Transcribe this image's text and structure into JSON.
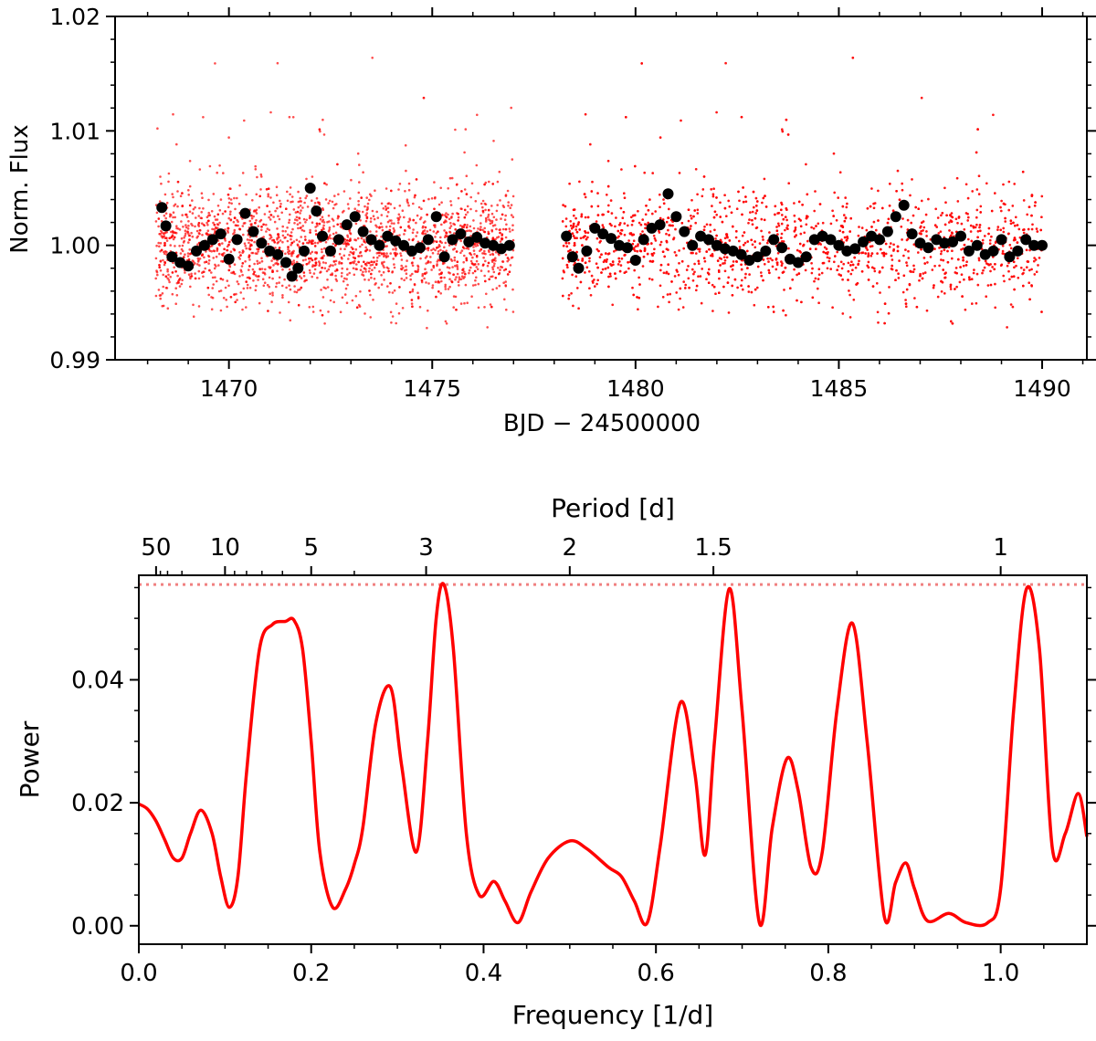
{
  "chart_data": [
    {
      "type": "scatter",
      "name": "light-curve",
      "xlabel": "BJD − 24500000",
      "ylabel": "Norm. Flux",
      "xlim": [
        1467.2,
        1491.1
      ],
      "ylim": [
        0.99,
        1.02
      ],
      "xticks": [
        1470,
        1475,
        1480,
        1485,
        1490
      ],
      "xtick_labels": [
        "1470",
        "1475",
        "1480",
        "1485",
        "1490"
      ],
      "yticks": [
        0.99,
        1.0,
        1.01,
        1.02
      ],
      "ytick_labels": [
        "0.99",
        "1.00",
        "1.01",
        "1.02"
      ],
      "gap": [
        1477.0,
        1478.2
      ],
      "series": [
        {
          "name": "raw flux",
          "color": "#ff0000",
          "marker": "small dots",
          "segments": [
            [
              1468.2,
              1477.0
            ],
            [
              1478.2,
              1490.0
            ]
          ],
          "center": 1.0,
          "scatter": 0.003
        },
        {
          "name": "binned flux",
          "color": "#000000",
          "marker": "large dots",
          "points": [
            [
              1468.35,
              1.0033
            ],
            [
              1468.45,
              1.0017
            ],
            [
              1468.6,
              0.999
            ],
            [
              1468.8,
              0.9985
            ],
            [
              1469.0,
              0.9982
            ],
            [
              1469.2,
              0.9995
            ],
            [
              1469.4,
              1.0
            ],
            [
              1469.6,
              1.0005
            ],
            [
              1469.8,
              1.001
            ],
            [
              1470.0,
              0.9988
            ],
            [
              1470.2,
              1.0005
            ],
            [
              1470.4,
              1.0028
            ],
            [
              1470.6,
              1.0012
            ],
            [
              1470.8,
              1.0002
            ],
            [
              1471.0,
              0.9995
            ],
            [
              1471.2,
              0.9992
            ],
            [
              1471.4,
              0.9985
            ],
            [
              1471.55,
              0.9973
            ],
            [
              1471.7,
              0.998
            ],
            [
              1471.85,
              0.9995
            ],
            [
              1472.0,
              1.005
            ],
            [
              1472.15,
              1.003
            ],
            [
              1472.3,
              1.0008
            ],
            [
              1472.5,
              0.9995
            ],
            [
              1472.7,
              1.0005
            ],
            [
              1472.9,
              1.0018
            ],
            [
              1473.1,
              1.0025
            ],
            [
              1473.3,
              1.0012
            ],
            [
              1473.5,
              1.0005
            ],
            [
              1473.7,
              1.0
            ],
            [
              1473.9,
              1.0008
            ],
            [
              1474.1,
              1.0004
            ],
            [
              1474.3,
              1.0
            ],
            [
              1474.5,
              0.9995
            ],
            [
              1474.7,
              0.9998
            ],
            [
              1474.9,
              1.0005
            ],
            [
              1475.1,
              1.0025
            ],
            [
              1475.3,
              0.999
            ],
            [
              1475.5,
              1.0005
            ],
            [
              1475.7,
              1.001
            ],
            [
              1475.9,
              1.0003
            ],
            [
              1476.1,
              1.0007
            ],
            [
              1476.3,
              1.0002
            ],
            [
              1476.5,
              1.0
            ],
            [
              1476.7,
              0.9997
            ],
            [
              1476.9,
              1.0
            ],
            [
              1478.3,
              1.0008
            ],
            [
              1478.45,
              0.999
            ],
            [
              1478.6,
              0.998
            ],
            [
              1478.8,
              0.9995
            ],
            [
              1479.0,
              1.0015
            ],
            [
              1479.2,
              1.001
            ],
            [
              1479.4,
              1.0006
            ],
            [
              1479.6,
              1.0
            ],
            [
              1479.8,
              0.9998
            ],
            [
              1480.0,
              0.9987
            ],
            [
              1480.2,
              1.0005
            ],
            [
              1480.4,
              1.0015
            ],
            [
              1480.6,
              1.0018
            ],
            [
              1480.8,
              1.0045
            ],
            [
              1481.0,
              1.0025
            ],
            [
              1481.2,
              1.0012
            ],
            [
              1481.4,
              1.0
            ],
            [
              1481.6,
              1.0008
            ],
            [
              1481.8,
              1.0005
            ],
            [
              1482.0,
              1.0
            ],
            [
              1482.2,
              0.9997
            ],
            [
              1482.4,
              0.9995
            ],
            [
              1482.6,
              0.9992
            ],
            [
              1482.8,
              0.9987
            ],
            [
              1483.0,
              0.999
            ],
            [
              1483.2,
              0.9995
            ],
            [
              1483.4,
              1.0005
            ],
            [
              1483.6,
              0.9998
            ],
            [
              1483.8,
              0.9988
            ],
            [
              1484.0,
              0.9985
            ],
            [
              1484.2,
              0.999
            ],
            [
              1484.4,
              1.0005
            ],
            [
              1484.6,
              1.0008
            ],
            [
              1484.8,
              1.0005
            ],
            [
              1485.0,
              1.0
            ],
            [
              1485.2,
              0.9995
            ],
            [
              1485.4,
              0.9997
            ],
            [
              1485.6,
              1.0003
            ],
            [
              1485.8,
              1.0008
            ],
            [
              1486.0,
              1.0005
            ],
            [
              1486.2,
              1.0012
            ],
            [
              1486.4,
              1.0025
            ],
            [
              1486.6,
              1.0035
            ],
            [
              1486.8,
              1.001
            ],
            [
              1487.0,
              1.0002
            ],
            [
              1487.2,
              0.9998
            ],
            [
              1487.4,
              1.0005
            ],
            [
              1487.6,
              1.0002
            ],
            [
              1487.8,
              1.0003
            ],
            [
              1488.0,
              1.0008
            ],
            [
              1488.2,
              0.9995
            ],
            [
              1488.4,
              1.0
            ],
            [
              1488.6,
              0.9992
            ],
            [
              1488.8,
              0.9995
            ],
            [
              1489.0,
              1.0005
            ],
            [
              1489.2,
              0.999
            ],
            [
              1489.4,
              0.9995
            ],
            [
              1489.6,
              1.0005
            ],
            [
              1489.8,
              1.0
            ],
            [
              1490.0,
              1.0
            ]
          ]
        }
      ]
    },
    {
      "type": "line",
      "name": "periodogram",
      "xlabel": "Frequency [1/d]",
      "ylabel": "Power",
      "top_xlabel": "Period [d]",
      "xlim": [
        0.0,
        1.1
      ],
      "ylim": [
        -0.003,
        0.057
      ],
      "xticks": [
        0.0,
        0.2,
        0.4,
        0.6,
        0.8,
        1.0
      ],
      "xtick_labels": [
        "0.0",
        "0.2",
        "0.4",
        "0.6",
        "0.8",
        "1.0"
      ],
      "yticks": [
        0.0,
        0.02,
        0.04
      ],
      "ytick_labels": [
        "0.00",
        "0.02",
        "0.04"
      ],
      "top_ticks": [
        50,
        10,
        5,
        3,
        2,
        1.5,
        1
      ],
      "top_tick_labels": [
        "50",
        "10",
        "5",
        "3",
        "2",
        "1.5",
        "1"
      ],
      "threshold": 0.0555,
      "series": [
        {
          "name": "power",
          "color": "#ff0000",
          "x": [
            0.0,
            0.01,
            0.02,
            0.03,
            0.04,
            0.05,
            0.06,
            0.072,
            0.085,
            0.095,
            0.105,
            0.115,
            0.125,
            0.14,
            0.155,
            0.17,
            0.18,
            0.19,
            0.2,
            0.21,
            0.225,
            0.24,
            0.25,
            0.26,
            0.275,
            0.292,
            0.305,
            0.322,
            0.335,
            0.345,
            0.354,
            0.365,
            0.38,
            0.395,
            0.412,
            0.425,
            0.44,
            0.455,
            0.475,
            0.5,
            0.52,
            0.545,
            0.56,
            0.575,
            0.59,
            0.605,
            0.628,
            0.645,
            0.657,
            0.668,
            0.685,
            0.7,
            0.72,
            0.735,
            0.752,
            0.765,
            0.78,
            0.793,
            0.81,
            0.828,
            0.845,
            0.865,
            0.878,
            0.89,
            0.9,
            0.915,
            0.94,
            0.96,
            0.985,
            1.0,
            1.015,
            1.03,
            1.045,
            1.06,
            1.075,
            1.09,
            1.1
          ],
          "values": [
            0.0198,
            0.019,
            0.017,
            0.014,
            0.011,
            0.011,
            0.015,
            0.0188,
            0.015,
            0.008,
            0.003,
            0.008,
            0.025,
            0.045,
            0.049,
            0.0495,
            0.0497,
            0.045,
            0.03,
            0.012,
            0.003,
            0.006,
            0.01,
            0.016,
            0.033,
            0.0388,
            0.026,
            0.012,
            0.03,
            0.05,
            0.0555,
            0.045,
            0.015,
            0.005,
            0.0072,
            0.004,
            0.0005,
            0.0055,
            0.011,
            0.0138,
            0.0125,
            0.0095,
            0.008,
            0.004,
            0.0005,
            0.013,
            0.0362,
            0.025,
            0.0115,
            0.03,
            0.0548,
            0.035,
            0.0005,
            0.016,
            0.0272,
            0.022,
            0.0095,
            0.012,
            0.035,
            0.0492,
            0.03,
            0.0015,
            0.007,
            0.0102,
            0.006,
            0.0008,
            0.002,
            0.0005,
            0.0005,
            0.006,
            0.035,
            0.0548,
            0.045,
            0.0125,
            0.015,
            0.0215,
            0.0145
          ]
        }
      ]
    }
  ]
}
